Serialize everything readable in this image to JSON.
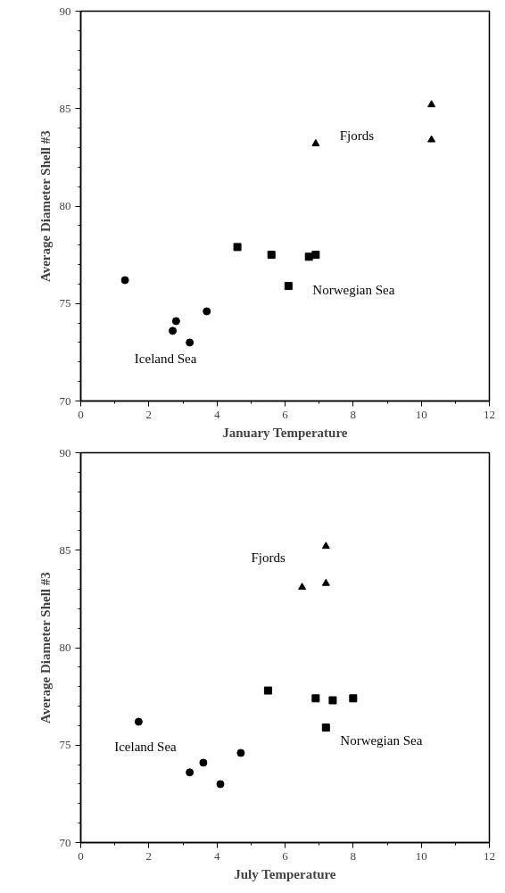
{
  "chart_data": [
    {
      "type": "scatter",
      "xlabel": "January Temperature",
      "ylabel": "Average Diameter Shell #3",
      "xlim": [
        0,
        12
      ],
      "ylim": [
        70,
        90
      ],
      "xticks": [
        0,
        2,
        4,
        6,
        8,
        10,
        12
      ],
      "yticks": [
        70,
        75,
        80,
        85,
        90
      ],
      "series": [
        {
          "name": "Iceland Sea",
          "color": "#000000",
          "marker": "circle",
          "x": [
            1.3,
            2.7,
            2.8,
            3.2,
            3.7
          ],
          "values": [
            76.2,
            73.6,
            74.1,
            73.0,
            74.6
          ]
        },
        {
          "name": "Norwegian Sea",
          "color": "#000000",
          "marker": "square",
          "x": [
            4.6,
            5.6,
            6.1,
            6.7,
            6.9
          ],
          "values": [
            77.9,
            77.5,
            75.9,
            77.4,
            77.5
          ]
        },
        {
          "name": "Fjords",
          "color": "#000000",
          "marker": "triangle",
          "x": [
            6.9,
            10.3,
            10.3
          ],
          "values": [
            83.2,
            85.2,
            83.4
          ]
        }
      ]
    },
    {
      "type": "scatter",
      "xlabel": "July Temperature",
      "ylabel": "Average Diameter Shell #3",
      "xlim": [
        0,
        12
      ],
      "ylim": [
        70,
        90
      ],
      "xticks": [
        0,
        2,
        4,
        6,
        8,
        10,
        12
      ],
      "yticks": [
        70,
        75,
        80,
        85,
        90
      ],
      "series": [
        {
          "name": "Iceland Sea",
          "color": "#000000",
          "marker": "circle",
          "x": [
            1.7,
            3.2,
            3.6,
            4.1,
            4.7
          ],
          "values": [
            76.2,
            73.6,
            74.1,
            73.0,
            74.6
          ]
        },
        {
          "name": "Norwegian Sea",
          "color": "#000000",
          "marker": "square",
          "x": [
            5.5,
            6.9,
            7.4,
            8.0,
            7.2
          ],
          "values": [
            77.8,
            77.4,
            77.3,
            77.4,
            75.9
          ]
        },
        {
          "name": "Fjords",
          "color": "#000000",
          "marker": "triangle",
          "x": [
            6.5,
            7.2,
            7.2
          ],
          "values": [
            83.1,
            85.2,
            83.3
          ]
        }
      ]
    }
  ]
}
